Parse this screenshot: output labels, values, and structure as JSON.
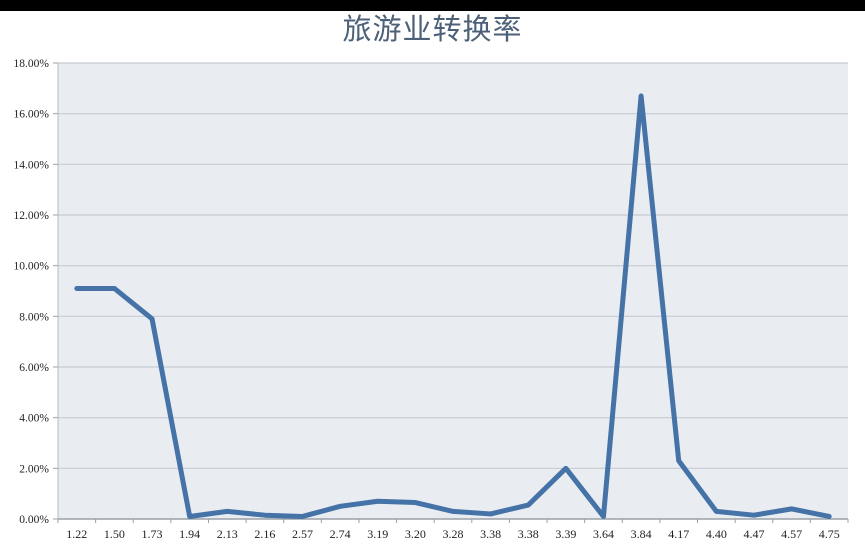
{
  "page": {
    "topbar_color": "#000000"
  },
  "chart_data": {
    "type": "line",
    "title": "旅游业转换率",
    "categories": [
      "1.22",
      "1.50",
      "1.73",
      "1.94",
      "2.13",
      "2.16",
      "2.57",
      "2.74",
      "3.19",
      "3.20",
      "3.28",
      "3.38",
      "3.38",
      "3.39",
      "3.64",
      "3.84",
      "4.17",
      "4.40",
      "4.47",
      "4.57",
      "4.75"
    ],
    "values": [
      9.1,
      9.1,
      7.9,
      0.1,
      0.3,
      0.15,
      0.1,
      0.5,
      0.7,
      0.65,
      0.3,
      0.2,
      0.55,
      2.0,
      0.1,
      16.7,
      2.3,
      0.3,
      0.15,
      0.4,
      0.1
    ],
    "xlabel": "",
    "ylabel": "",
    "ylim": [
      0,
      18
    ],
    "y_tick_step": 2,
    "y_tick_labels": [
      "18.00%",
      "16.00%",
      "14.00%",
      "12.00%",
      "10.00%",
      "8.00%",
      "6.00%",
      "4.00%",
      "2.00%",
      "0.00%"
    ],
    "grid": "horizontal",
    "legend": "none",
    "colors": {
      "line": "#4572a7",
      "plot_bg": "#e9edf2",
      "grid": "#c6cbd1",
      "axis": "#9aa0a6",
      "left_axis": "#b5bac0",
      "title": "#4c6078",
      "tick_label": "#1f1f1f"
    }
  }
}
